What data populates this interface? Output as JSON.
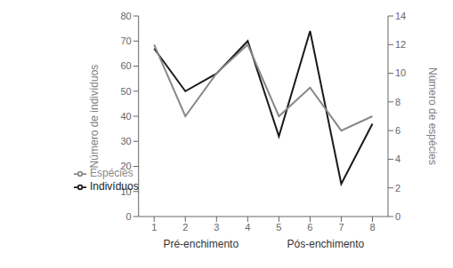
{
  "chart_data": {
    "type": "line",
    "x": [
      1,
      2,
      3,
      4,
      5,
      6,
      7,
      8
    ],
    "xlim": [
      0.5,
      8.5
    ],
    "xticks": [
      1,
      2,
      3,
      4,
      5,
      6,
      7,
      8
    ],
    "series": [
      {
        "name": "Indivíduos",
        "color": "#1a1a1a",
        "values": [
          67,
          50,
          57,
          70,
          32,
          74,
          13,
          37
        ]
      },
      {
        "name": "Espécies",
        "color": "#888888",
        "values": [
          12,
          7,
          10,
          12,
          7,
          9,
          6,
          7
        ],
        "axis": "y2"
      }
    ],
    "ylabel": "Número de indivíduos",
    "y2label": "Número de espécies",
    "ylim": [
      0,
      80
    ],
    "yticks": [
      0,
      10,
      20,
      30,
      40,
      50,
      60,
      70,
      80
    ],
    "y2lim": [
      0,
      14
    ],
    "y2ticks": [
      0,
      2,
      4,
      6,
      8,
      10,
      12,
      14
    ],
    "annotations": [
      {
        "text": "Pré-enchimento",
        "x": 2.5
      },
      {
        "text": "Pós-enchimento",
        "x": 6.5
      }
    ],
    "legend": "lower left",
    "grid": false
  }
}
